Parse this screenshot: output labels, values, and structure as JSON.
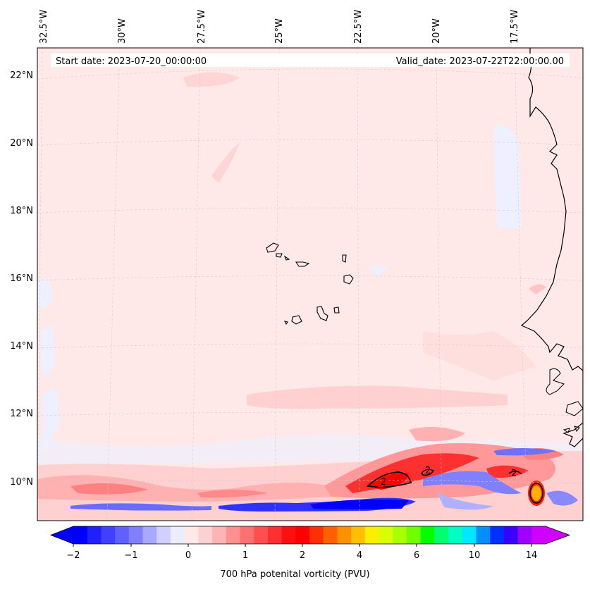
{
  "header": {
    "start_date": "Start date: 2023-07-20_00:00:00",
    "valid_date": "Valid_date: 2023-07-22T22:00:00.00"
  },
  "map": {
    "region": "Eastern tropical Atlantic / Cape Verde / West African coast",
    "lon_labels": [
      "32.5°W",
      "30°W",
      "27.5°W",
      "25°W",
      "22.5°W",
      "20°W",
      "17.5°W"
    ],
    "lat_labels": [
      "22°N",
      "20°N",
      "18°N",
      "16°N",
      "14°N",
      "12°N",
      "10°N"
    ],
    "contour_labels": [
      "2",
      "2",
      "2"
    ],
    "colors": {
      "background": "#ffe8e8",
      "coast": "#000000",
      "grid": "#cccccc"
    }
  },
  "colorbar": {
    "title": "700 hPa potenital vorticity (PVU)",
    "tick_labels": [
      "−2",
      "−1",
      "0",
      "1",
      "2",
      "4",
      "6",
      "10",
      "14"
    ],
    "colors": [
      "#0000ff",
      "#2020ff",
      "#4040ff",
      "#6060ff",
      "#8080ff",
      "#a8a8ff",
      "#d0d0ff",
      "#ececff",
      "#ffe8e8",
      "#ffd0d0",
      "#ffb4b4",
      "#ff9090",
      "#ff7070",
      "#ff5050",
      "#ff3030",
      "#ff1010",
      "#ff0000",
      "#ff3000",
      "#ff6000",
      "#ff9000",
      "#ffc000",
      "#ffee00",
      "#d8ff00",
      "#a8ff00",
      "#70ff00",
      "#00ff00",
      "#00ff70",
      "#00ffc0",
      "#00e8ff",
      "#0090ff",
      "#0030ff",
      "#3800ff",
      "#a000ff",
      "#d000ff"
    ],
    "extend_low_color": "#0000ff",
    "extend_high_color": "#d000ff"
  }
}
